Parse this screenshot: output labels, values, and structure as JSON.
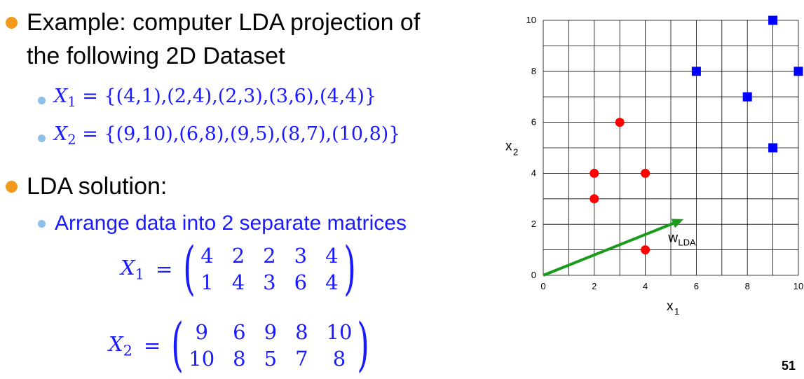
{
  "bullets": {
    "example_line1": "Example: computer LDA projection of",
    "example_line2": "the following 2D Dataset",
    "x1_set": "{(4,1),(2,4),(2,3),(3,6),(4,4)}",
    "x2_set": "{(9,10),(6,8),(9,5),(8,7),(10,8)}",
    "solution": "LDA solution:",
    "arrange": "Arrange data into 2 separate matrices"
  },
  "math": {
    "var_x": "X",
    "sub1": "1",
    "sub2": "2",
    "equals": "="
  },
  "matrices": {
    "x1": [
      [
        "4",
        "2",
        "2",
        "3",
        "4"
      ],
      [
        "1",
        "4",
        "3",
        "6",
        "4"
      ]
    ],
    "x2": [
      [
        "9",
        "6",
        "9",
        "8",
        "10"
      ],
      [
        "10",
        "8",
        "5",
        "7",
        "8"
      ]
    ]
  },
  "page_number": "51",
  "chart_data": {
    "type": "scatter",
    "xlim": [
      0,
      10
    ],
    "ylim": [
      0,
      10
    ],
    "x_ticks": [
      "0",
      "2",
      "4",
      "6",
      "8",
      "10"
    ],
    "y_ticks": [
      "0",
      "2",
      "4",
      "6",
      "8",
      "10"
    ],
    "xlabel_main": "x",
    "xlabel_sub": "1",
    "ylabel_main": "x",
    "ylabel_sub": "2",
    "grid": true,
    "series": [
      {
        "marker": "circle",
        "color": "#ff0000",
        "x": [
          4,
          2,
          2,
          3,
          4
        ],
        "y": [
          1,
          4,
          3,
          6,
          4
        ]
      },
      {
        "marker": "square",
        "color": "#0000ff",
        "x": [
          9,
          6,
          9,
          8,
          10
        ],
        "y": [
          10,
          8,
          5,
          7,
          8
        ]
      }
    ],
    "arrow": {
      "from": [
        0,
        0
      ],
      "to": [
        5.5,
        2.2
      ],
      "color": "#1a9a1a",
      "label_main": "w",
      "label_sub": "LDA",
      "label_at": [
        4.9,
        1.3
      ]
    }
  }
}
